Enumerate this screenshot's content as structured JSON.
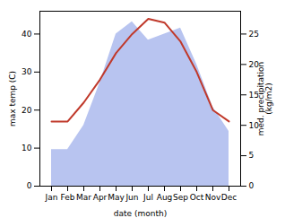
{
  "chart_data": {
    "type": "line",
    "xlabel": "date (month)",
    "ylabel": "max temp (C)",
    "y2label": "med. precipitation\n(kg/m2)",
    "categories": [
      "Jan",
      "Feb",
      "Mar",
      "Apr",
      "May",
      "Jun",
      "Jul",
      "Aug",
      "Sep",
      "Oct",
      "Nov",
      "Dec"
    ],
    "series": [
      {
        "type": "area",
        "axis": "y2",
        "color": "#b8c4f0",
        "values": [
          6,
          6,
          10,
          17,
          25,
          27,
          24,
          25,
          26,
          20,
          13,
          9
        ]
      },
      {
        "type": "line",
        "color": "#c0392b",
        "values": [
          17,
          17,
          22,
          28,
          35,
          40,
          44,
          43,
          38,
          30,
          20,
          17
        ]
      }
    ],
    "ylim": [
      0,
      46
    ],
    "yticks": [
      0,
      10,
      20,
      30,
      40
    ],
    "y2lim": [
      0,
      28.75
    ],
    "y2ticks": [
      0,
      5,
      10,
      15,
      20,
      25
    ],
    "grid": false
  }
}
